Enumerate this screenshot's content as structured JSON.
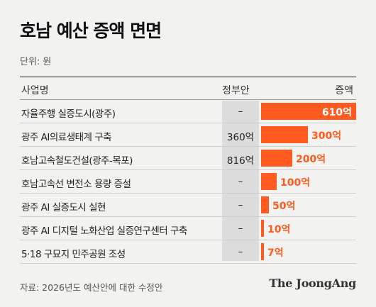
{
  "title": "호남 예산 증액 면면",
  "unit": "단위: 원",
  "headers": {
    "name": "사업명",
    "gov": "정부안",
    "increase": "증액"
  },
  "source": "자료: 2026년도 예산안에 대한 수정안",
  "logo": "The JoongAng",
  "colors": {
    "bar": "#ff5a1f",
    "gov_column": "#dcdcdc",
    "background": "#f2f2f0"
  },
  "chart_data": {
    "type": "bar",
    "orientation": "horizontal",
    "title": "호남 예산 증액 면면",
    "categories": [
      "자율주행 실증도시(광주)",
      "광주 AI의료생태계 구축",
      "호남고속철도건설(광주-목포)",
      "호남고속선 변전소 용량 증설",
      "광주 AI 실증도시 실현",
      "광주 AI 디지털 노화산업 실증연구센터 구축",
      "5·18 구묘지 민주공원 조성"
    ],
    "gov_proposal": [
      "–",
      "360억",
      "816억",
      "–",
      "–",
      "–",
      "–"
    ],
    "values": [
      610,
      300,
      200,
      100,
      50,
      10,
      7
    ],
    "value_labels": [
      "610억",
      "300억",
      "200억",
      "100억",
      "50억",
      "10억",
      "7억"
    ],
    "xlim": [
      0,
      610
    ]
  }
}
